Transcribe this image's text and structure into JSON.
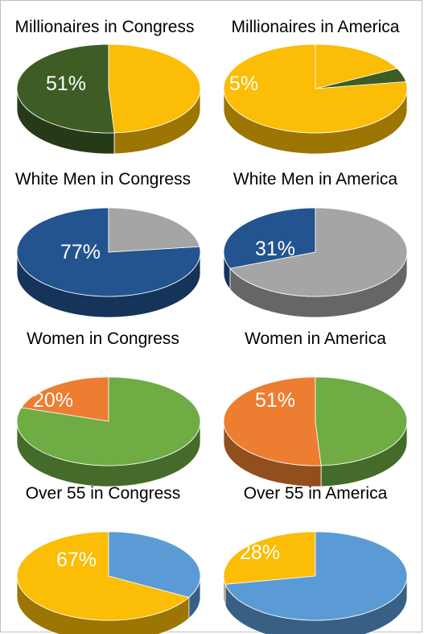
{
  "chart_data": [
    {
      "type": "pie",
      "title": "Millionaires in Congress",
      "highlight": 51,
      "label": "51%",
      "highlight_color": "#3d5d25",
      "rest_color": "#fbbd05",
      "start_angle": 0
    },
    {
      "type": "pie",
      "title": "Millionaires in America",
      "highlight": 5,
      "label": "5%",
      "highlight_color": "#3d5d25",
      "rest_color": "#fbbd05",
      "start_angle": 81
    },
    {
      "type": "pie",
      "title": "White Men in Congress",
      "highlight": 77,
      "label": "77%",
      "highlight_color": "#23548f",
      "rest_color": "#a5a5a5",
      "start_angle": 0
    },
    {
      "type": "pie",
      "title": "White Men in America",
      "highlight": 31,
      "label": "31%",
      "highlight_color": "#23548f",
      "rest_color": "#a5a5a5",
      "start_angle": 0
    },
    {
      "type": "pie",
      "title": "Women in Congress",
      "highlight": 20,
      "label": "20%",
      "highlight_color": "#ed7d31",
      "rest_color": "#6fac44",
      "start_angle": 0
    },
    {
      "type": "pie",
      "title": "Women in America",
      "highlight": 51,
      "label": "51%",
      "highlight_color": "#ed7d31",
      "rest_color": "#6fac44",
      "start_angle": 0
    },
    {
      "type": "pie",
      "title": "Over 55 in Congress",
      "highlight": 67,
      "label": "67%",
      "highlight_color": "#fbbd05",
      "rest_color": "#5b9bd5",
      "start_angle": 0
    },
    {
      "type": "pie",
      "title": "Over 55 in America",
      "highlight": 28,
      "label": "28%",
      "highlight_color": "#fbbd05",
      "rest_color": "#5b9bd5",
      "start_angle": 0
    }
  ]
}
